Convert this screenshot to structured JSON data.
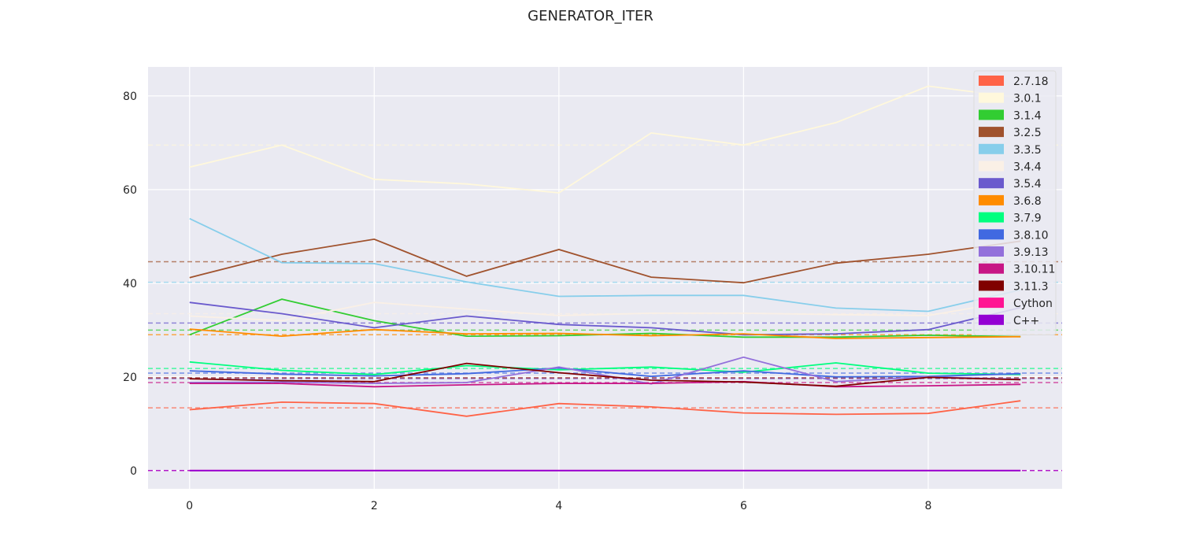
{
  "chart_data": {
    "type": "line",
    "title": "GENERATOR_ITER",
    "xlabel": "",
    "ylabel": "",
    "x": [
      0,
      1,
      2,
      3,
      4,
      5,
      6,
      7,
      8,
      9
    ],
    "xticks": [
      0,
      2,
      4,
      6,
      8
    ],
    "yticks": [
      0,
      20,
      40,
      60,
      80
    ],
    "xlim": [
      -0.45,
      9.45
    ],
    "ylim": [
      -3.9,
      86.2
    ],
    "grid": true,
    "legend_position": "top-right",
    "series": [
      {
        "name": "2.7.18",
        "color": "#FF6347",
        "mean": 13.4,
        "values": [
          13.0,
          14.6,
          14.3,
          11.6,
          14.3,
          13.6,
          12.3,
          12.0,
          12.2,
          14.9
        ]
      },
      {
        "name": "3.0.1",
        "color": "#FFF8DC",
        "mean": 69.5,
        "values": [
          64.8,
          69.5,
          62.2,
          61.2,
          59.3,
          72.1,
          69.5,
          74.3,
          82.1,
          79.6
        ]
      },
      {
        "name": "3.1.4",
        "color": "#32CD32",
        "mean": 30.0,
        "values": [
          29.0,
          36.6,
          32.0,
          28.7,
          28.8,
          29.3,
          28.5,
          28.5,
          28.9,
          28.6
        ]
      },
      {
        "name": "3.2.5",
        "color": "#A0522D",
        "mean": 44.6,
        "values": [
          41.2,
          46.2,
          49.4,
          41.5,
          47.2,
          41.3,
          40.1,
          44.3,
          46.2,
          49.0
        ]
      },
      {
        "name": "3.3.5",
        "color": "#87CEEB",
        "mean": 40.2,
        "values": [
          53.8,
          44.4,
          44.2,
          40.3,
          37.2,
          37.4,
          37.4,
          34.7,
          34.0,
          38.6
        ]
      },
      {
        "name": "3.4.4",
        "color": "#FAF0E6",
        "mean": 33.5,
        "values": [
          33.0,
          32.0,
          35.9,
          34.5,
          33.1,
          33.6,
          33.6,
          33.3,
          33.1,
          36.5
        ]
      },
      {
        "name": "3.5.4",
        "color": "#6A5ACD",
        "mean": 31.5,
        "values": [
          35.9,
          33.5,
          30.5,
          33.0,
          31.2,
          30.5,
          29.0,
          29.2,
          30.1,
          34.8
        ]
      },
      {
        "name": "3.6.8",
        "color": "#FF8C00",
        "mean": 29.0,
        "values": [
          30.2,
          28.7,
          30.1,
          29.2,
          29.3,
          28.8,
          29.2,
          28.2,
          28.4,
          28.6
        ]
      },
      {
        "name": "3.7.9",
        "color": "#00FF7F",
        "mean": 21.8,
        "values": [
          23.2,
          21.4,
          20.5,
          22.4,
          21.5,
          22.1,
          21.0,
          23.0,
          20.8,
          20.5
        ]
      },
      {
        "name": "3.8.10",
        "color": "#4169E1",
        "mean": 20.8,
        "values": [
          21.3,
          20.6,
          20.2,
          20.7,
          21.9,
          20.1,
          21.3,
          20.0,
          20.1,
          20.7
        ]
      },
      {
        "name": "3.9.13",
        "color": "#9370DB",
        "mean": 19.6,
        "values": [
          18.8,
          18.9,
          18.6,
          18.8,
          22.1,
          18.5,
          24.2,
          19.0,
          20.0,
          19.5
        ]
      },
      {
        "name": "3.10.11",
        "color": "#C71585",
        "mean": 18.8,
        "values": [
          18.6,
          18.6,
          17.9,
          18.3,
          18.6,
          18.6,
          19.0,
          17.9,
          18.1,
          18.4
        ]
      },
      {
        "name": "3.11.3",
        "color": "#800000",
        "mean": 19.8,
        "values": [
          19.6,
          19.2,
          19.0,
          22.9,
          20.9,
          19.3,
          18.9,
          18.0,
          19.9,
          19.4
        ]
      },
      {
        "name": "Cython",
        "color": "#FF1493",
        "mean": 0.0,
        "values": [
          0,
          0,
          0,
          0,
          0,
          0,
          0,
          0,
          0,
          0
        ]
      },
      {
        "name": "C++",
        "color": "#9400D3",
        "mean": 0.0,
        "values": [
          0,
          0,
          0,
          0,
          0,
          0,
          0,
          0,
          0,
          0
        ]
      }
    ]
  }
}
